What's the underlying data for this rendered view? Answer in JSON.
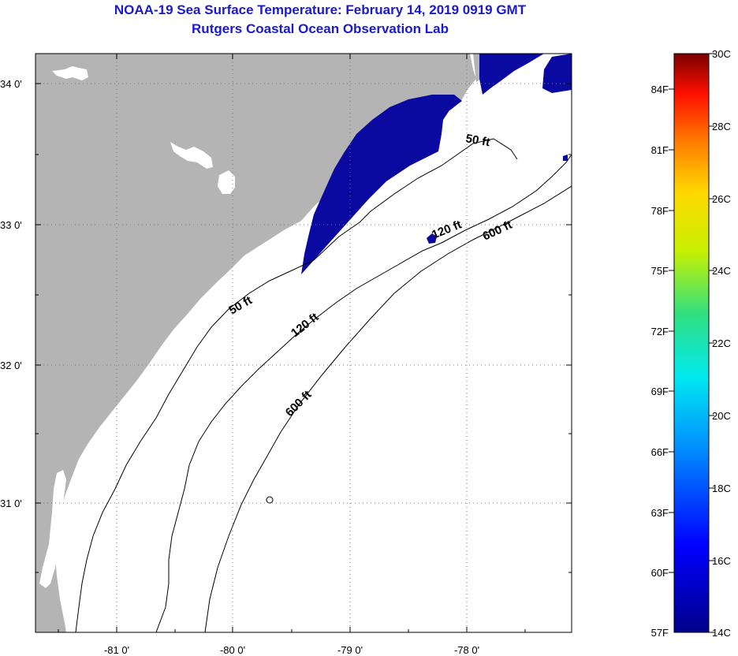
{
  "header": {
    "title": "NOAA-19 Sea Surface Temperature:  February 14, 2019 0919 GMT",
    "subtitle": "Rutgers Coastal Ocean Observation Lab"
  },
  "map": {
    "lon_ticks": [
      "-81 0'",
      "-80 0'",
      "-79 0'",
      "-78 0'"
    ],
    "lat_ticks": [
      "34 0'",
      "33 0'",
      "32 0'",
      "31 0'"
    ],
    "contours": [
      {
        "label": "50 ft"
      },
      {
        "label": "120 ft"
      },
      {
        "label": "600 ft"
      },
      {
        "label": "50 ft"
      },
      {
        "label": "120 ft"
      },
      {
        "label": "600 ft"
      }
    ],
    "colors": {
      "land": "#b4b4b4",
      "ocean": "#ffffff",
      "cold_water": "#0a0aa0"
    }
  },
  "colorbar": {
    "fahrenheit": [
      "84F",
      "81F",
      "78F",
      "75F",
      "72F",
      "69F",
      "66F",
      "63F",
      "60F",
      "57F"
    ],
    "celsius": [
      "30C",
      "28C",
      "26C",
      "24C",
      "22C",
      "20C",
      "18C",
      "16C",
      "14C"
    ]
  }
}
